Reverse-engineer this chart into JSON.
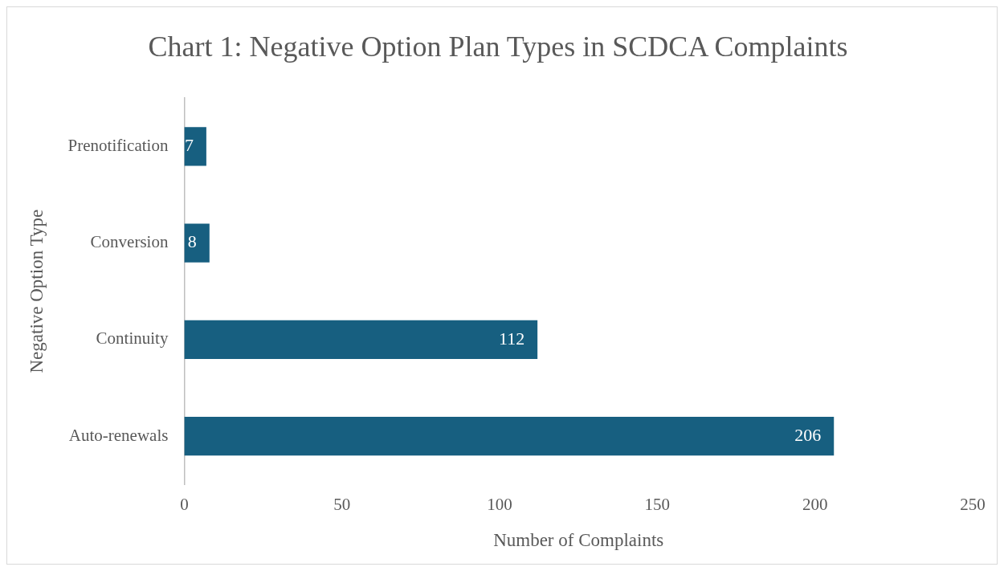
{
  "chart_data": {
    "type": "bar",
    "orientation": "horizontal",
    "title": "Chart 1: Negative Option Plan Types in SCDCA Complaints",
    "xlabel": "Number of Complaints",
    "ylabel": "Negative Option Type",
    "categories": [
      "Prenotification",
      "Conversion",
      "Continuity",
      "Auto-renewals"
    ],
    "values": [
      7,
      8,
      112,
      206
    ],
    "color": "#175f80",
    "xlim": [
      0,
      250
    ],
    "xticks": [
      0,
      50,
      100,
      150,
      200,
      250
    ],
    "grid": false,
    "legend": false,
    "data_labels": true
  }
}
